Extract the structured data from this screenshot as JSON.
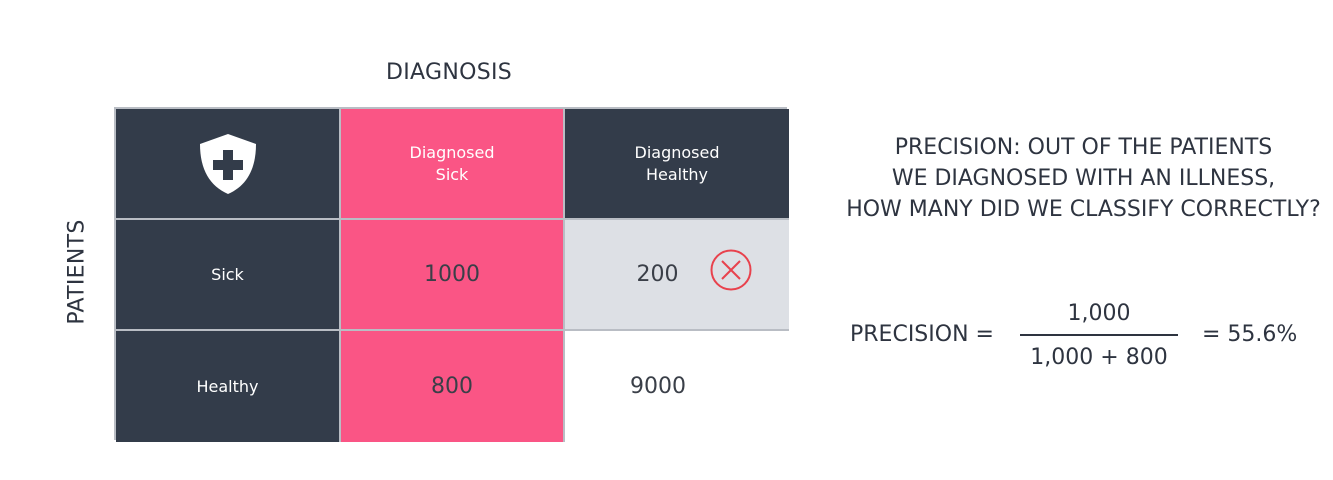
{
  "titles": {
    "top": "DIAGNOSIS",
    "side": "PATIENTS"
  },
  "matrix": {
    "col_headers": [
      {
        "line1": "Diagnosed",
        "line2": "Sick"
      },
      {
        "line1": "Diagnosed",
        "line2": "Healthy"
      }
    ],
    "row_headers": [
      "Sick",
      "Healthy"
    ],
    "values": [
      [
        "1000",
        "200"
      ],
      [
        "800",
        "9000"
      ]
    ],
    "corner_icon": "medical-shield-icon",
    "error_icon": "red-circle-x-icon"
  },
  "description": {
    "lines": [
      "PRECISION: OUT OF THE PATIENTS",
      "WE DIAGNOSED WITH AN ILLNESS,",
      "HOW MANY DID WE CLASSIFY CORRECTLY?"
    ]
  },
  "formula": {
    "label": "PRECISION =",
    "numerator": "1,000",
    "denominator": "1,000 + 800",
    "result": "= 55.6%"
  },
  "colors": {
    "dark": "#333c4a",
    "pink": "#fa5585",
    "gray": "#dde0e5",
    "error_red": "#e8424d"
  }
}
